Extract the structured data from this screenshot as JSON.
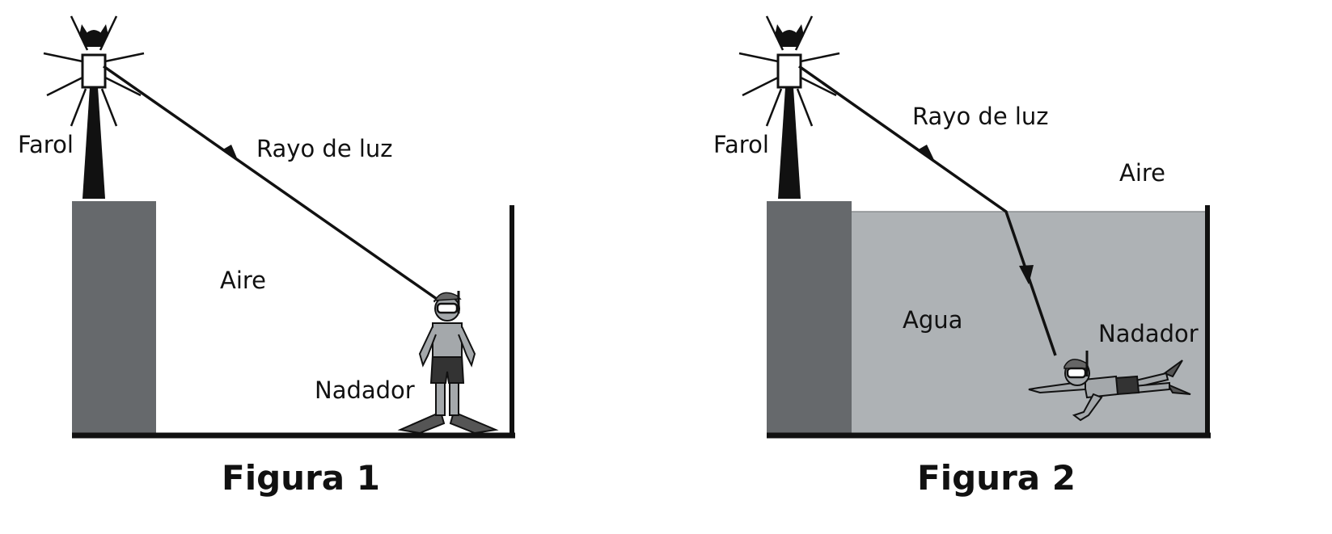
{
  "figures": [
    {
      "caption": "Figura 1",
      "labels": {
        "lamp": "Farol",
        "ray": "Rayo de luz",
        "medium": "Aire",
        "swimmer": "Nadador"
      }
    },
    {
      "caption": "Figura 2",
      "labels": {
        "lamp": "Farol",
        "ray": "Rayo de luz",
        "air": "Aire",
        "medium": "Agua",
        "swimmer": "Nadador"
      }
    }
  ],
  "colors": {
    "wall": "#66696c",
    "water": "#aeb2b5",
    "ink": "#111111",
    "skin": "#a4a8ab"
  },
  "icons": [
    "lighthouse-lamp-icon",
    "swimmer-standing-icon",
    "swimmer-diving-icon"
  ]
}
